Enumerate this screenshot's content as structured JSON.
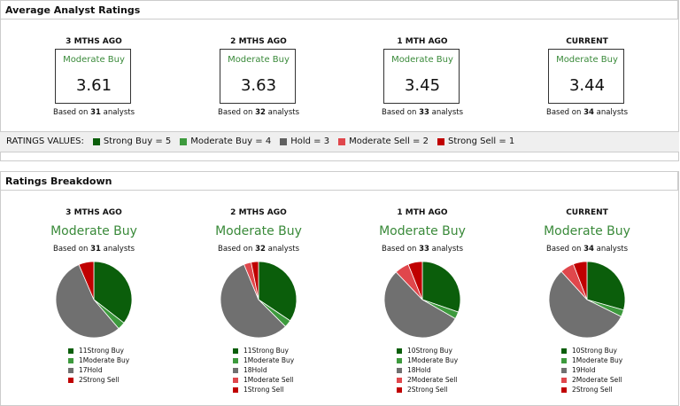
{
  "summary": {
    "title": "Average Analyst Ratings",
    "columns": [
      {
        "period": "3 MTHS AGO",
        "rating": "Moderate Buy",
        "score": 3.61,
        "based_on": "Based on",
        "analysts": 31,
        "unit": "analysts"
      },
      {
        "period": "2 MTHS AGO",
        "rating": "Moderate Buy",
        "score": 3.63,
        "based_on": "Based on",
        "analysts": 32,
        "unit": "analysts"
      },
      {
        "period": "1 MTH AGO",
        "rating": "Moderate Buy",
        "score": 3.45,
        "based_on": "Based on",
        "analysts": 33,
        "unit": "analysts"
      },
      {
        "period": "CURRENT",
        "rating": "Moderate Buy",
        "score": 3.44,
        "based_on": "Based on",
        "analysts": 34,
        "unit": "analysts"
      }
    ]
  },
  "ratings_values": {
    "label": "RATINGS VALUES:",
    "items": [
      {
        "text": "Strong Buy = 5",
        "color": "#0b5e0b"
      },
      {
        "text": "Moderate Buy = 4",
        "color": "#3d9a3d"
      },
      {
        "text": "Hold = 3",
        "color": "#606060"
      },
      {
        "text": "Moderate Sell = 2",
        "color": "#e0474c"
      },
      {
        "text": "Strong Sell = 1",
        "color": "#c00000"
      }
    ]
  },
  "breakdown": {
    "title": "Ratings Breakdown"
  },
  "chart_data": [
    {
      "type": "pie",
      "title": "3 MTHS AGO",
      "subtitle": "Moderate Buy",
      "note_prefix": "Based on",
      "analysts": 31,
      "note_suffix": "analysts",
      "categories": [
        "Strong Buy",
        "Moderate Buy",
        "Hold",
        "Strong Sell"
      ],
      "values": [
        11,
        1,
        17,
        2
      ],
      "colors": [
        "#0b5e0b",
        "#3d9a3d",
        "#707070",
        "#c00000"
      ]
    },
    {
      "type": "pie",
      "title": "2 MTHS AGO",
      "subtitle": "Moderate Buy",
      "note_prefix": "Based on",
      "analysts": 32,
      "note_suffix": "analysts",
      "categories": [
        "Strong Buy",
        "Moderate Buy",
        "Hold",
        "Moderate Sell",
        "Strong Sell"
      ],
      "values": [
        11,
        1,
        18,
        1,
        1
      ],
      "colors": [
        "#0b5e0b",
        "#3d9a3d",
        "#707070",
        "#e0474c",
        "#c00000"
      ]
    },
    {
      "type": "pie",
      "title": "1 MTH AGO",
      "subtitle": "Moderate Buy",
      "note_prefix": "Based on",
      "analysts": 33,
      "note_suffix": "analysts",
      "categories": [
        "Strong Buy",
        "Moderate Buy",
        "Hold",
        "Moderate Sell",
        "Strong Sell"
      ],
      "values": [
        10,
        1,
        18,
        2,
        2
      ],
      "colors": [
        "#0b5e0b",
        "#3d9a3d",
        "#707070",
        "#e0474c",
        "#c00000"
      ]
    },
    {
      "type": "pie",
      "title": "CURRENT",
      "subtitle": "Moderate Buy",
      "note_prefix": "Based on",
      "analysts": 34,
      "note_suffix": "analysts",
      "categories": [
        "Strong Buy",
        "Moderate Buy",
        "Hold",
        "Moderate Sell",
        "Strong Sell"
      ],
      "values": [
        10,
        1,
        19,
        2,
        2
      ],
      "colors": [
        "#0b5e0b",
        "#3d9a3d",
        "#707070",
        "#e0474c",
        "#c00000"
      ]
    }
  ]
}
